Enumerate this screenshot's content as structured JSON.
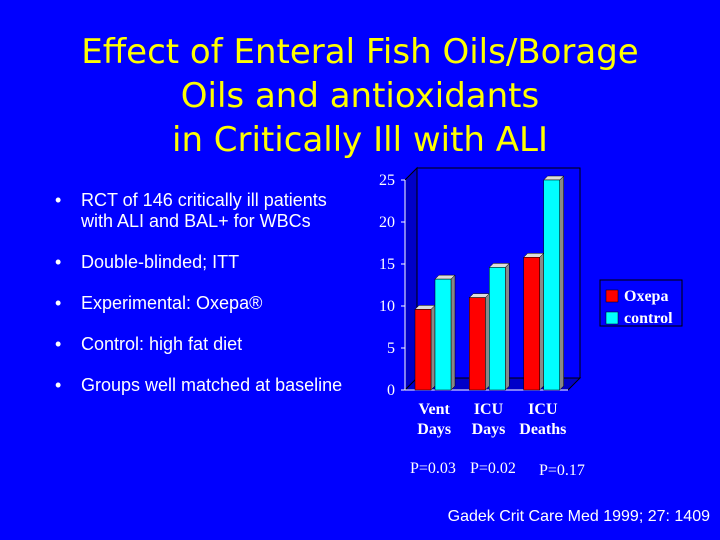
{
  "slide": {
    "title_lines": [
      "Effect of Enteral Fish Oils/Borage",
      "Oils and antioxidants",
      "in Critically Ill with ALI"
    ],
    "bullets": [
      "RCT of 146 critically ill patients with ALI and BAL+ for WBCs",
      "Double-blinded; ITT",
      "Experimental:  Oxepa®",
      "Control:  high fat diet",
      "Groups well matched at baseline"
    ],
    "bullet_glyph": "•",
    "p_values": [
      "P=0.03",
      "P=0.02",
      "P=0.17"
    ],
    "citation": "Gadek Crit Care Med 1999; 27: 1409"
  },
  "colors": {
    "background": "#0000ff",
    "title": "#ffff00",
    "oxepa": "#ff0000",
    "control": "#00ffff"
  },
  "chart_data": {
    "type": "bar",
    "categories": [
      [
        "Vent",
        "Days"
      ],
      [
        "ICU",
        "Days"
      ],
      [
        "ICU",
        "Deaths"
      ]
    ],
    "series": [
      {
        "name": "Oxepa",
        "values": [
          9.6,
          11.0,
          15.8
        ],
        "color": "#ff0000"
      },
      {
        "name": "control",
        "values": [
          13.2,
          14.6,
          25.0
        ],
        "color": "#00ffff"
      }
    ],
    "yticks": [
      0,
      5,
      10,
      15,
      20,
      25
    ],
    "ylim": [
      0,
      25
    ],
    "grid": false,
    "legend": "right",
    "style": "3d"
  }
}
